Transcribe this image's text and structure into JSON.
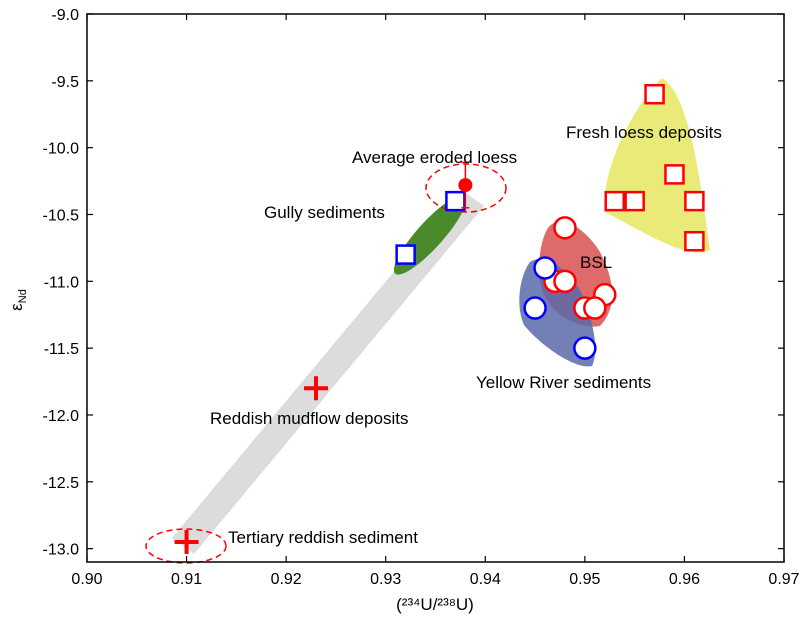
{
  "chart_data": {
    "type": "scatter",
    "xlabel": "(²³⁴U/²³⁸U)",
    "ylabel": "ε",
    "ylabel_subscript": "Nd",
    "xlim": [
      0.9,
      0.97
    ],
    "ylim": [
      -13.1,
      -9.0
    ],
    "xticks": [
      {
        "value": 0.9,
        "label": "0.90"
      },
      {
        "value": 0.91,
        "label": "0.91"
      },
      {
        "value": 0.92,
        "label": "0.92"
      },
      {
        "value": 0.93,
        "label": "0.93"
      },
      {
        "value": 0.94,
        "label": "0.94"
      },
      {
        "value": 0.95,
        "label": "0.95"
      },
      {
        "value": 0.96,
        "label": "0.96"
      },
      {
        "value": 0.97,
        "label": "0.97"
      }
    ],
    "yticks": [
      {
        "value": -9,
        "label": "-9.0"
      },
      -9.5,
      {
        "value": -10,
        "label": "-10.0"
      },
      -10.5,
      {
        "value": -11,
        "label": "-11.0"
      },
      -11.5,
      {
        "value": -12,
        "label": "-12.0"
      },
      -12.5,
      {
        "value": -13,
        "label": "-13.0"
      }
    ],
    "series": [
      {
        "name": "Fresh loess deposits",
        "color": "#ff0000",
        "marker": "square",
        "x": [
          0.957,
          0.959,
          0.953,
          0.955,
          0.961,
          0.961
        ],
        "y": [
          -9.6,
          -10.2,
          -10.4,
          -10.4,
          -10.4,
          -10.7
        ]
      },
      {
        "name": "BSL",
        "color": "#ff0000",
        "marker": "circle",
        "x": [
          0.948,
          0.947,
          0.948,
          0.952,
          0.95,
          0.951
        ],
        "y": [
          -10.6,
          -11.0,
          -11.0,
          -11.1,
          -11.2,
          -11.2
        ]
      },
      {
        "name": "Yellow River sediments",
        "color": "#0000ff",
        "marker": "circle",
        "x": [
          0.946,
          0.945,
          0.95
        ],
        "y": [
          -10.9,
          -11.2,
          -11.5
        ]
      },
      {
        "name": "Gully sediments",
        "color": "#0000ff",
        "marker": "square",
        "x": [
          0.937,
          0.932
        ],
        "y": [
          -10.4,
          -10.8
        ]
      },
      {
        "name": "Average eroded loess",
        "color": "#ff0000",
        "marker": "dot",
        "x": [
          0.938
        ],
        "y": [
          -10.28
        ],
        "yerr": [
          0.17
        ]
      },
      {
        "name": "Reddish mudflow deposits",
        "color": "#ff0000",
        "marker": "plus",
        "x": [
          0.923
        ],
        "y": [
          -11.8
        ]
      },
      {
        "name": "Tertiary reddish sediment",
        "color": "#ff0000",
        "marker": "plus",
        "x": [
          0.91
        ],
        "y": [
          -12.95
        ]
      }
    ]
  }
}
